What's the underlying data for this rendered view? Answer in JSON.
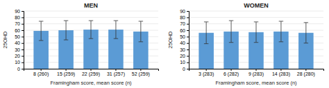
{
  "chart_data": [
    {
      "type": "bar",
      "title": "MEN",
      "categories": [
        "8 (260)",
        "15 (259)",
        "22 (259)",
        "31 (257)",
        "52 (259)"
      ],
      "values": [
        59,
        60,
        61,
        61,
        58
      ],
      "errors": [
        15,
        15,
        14,
        14,
        16
      ],
      "xlabel": "Framingham score, mean score (n)",
      "ylabel": "25OHD",
      "color": "#5B9BD5",
      "ylim": [
        0,
        90
      ],
      "yticks": [
        0,
        10,
        20,
        30,
        40,
        50,
        60,
        70,
        80,
        90
      ],
      "grid": true
    },
    {
      "type": "bar",
      "title": "WOMEN",
      "categories": [
        "3 (283)",
        "6 (282)",
        "9 (283)",
        "14 (283)",
        "28 (280)"
      ],
      "values": [
        56,
        58,
        57,
        58,
        56
      ],
      "errors": [
        17,
        17,
        16,
        16,
        16
      ],
      "xlabel": "Framingham score, mean score (n)",
      "ylabel": "25OHD",
      "color": "#5B9BD5",
      "ylim": [
        0,
        90
      ],
      "yticks": [
        0,
        10,
        20,
        30,
        40,
        50,
        60,
        70,
        80,
        90
      ],
      "grid": true
    }
  ]
}
